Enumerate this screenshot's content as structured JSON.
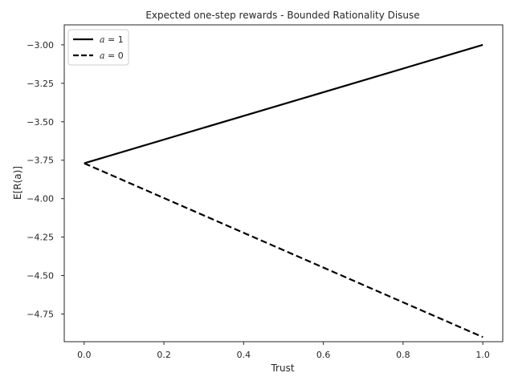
{
  "chart_data": {
    "type": "line",
    "title": "Expected one-step rewards - Bounded Rationality Disuse",
    "xlabel": "Trust",
    "ylabel": "E[R(a)]",
    "xlim": [
      -0.05,
      1.05
    ],
    "ylim": [
      -4.93,
      -2.87
    ],
    "xticks": [
      0.0,
      0.2,
      0.4,
      0.6,
      0.8,
      1.0
    ],
    "xtick_labels": [
      "0.0",
      "0.2",
      "0.4",
      "0.6",
      "0.8",
      "1.0"
    ],
    "yticks": [
      -3.0,
      -3.25,
      -3.5,
      -3.75,
      -4.0,
      -4.25,
      -4.5,
      -4.75
    ],
    "ytick_labels": [
      "−3.00",
      "−3.25",
      "−3.50",
      "−3.75",
      "−4.00",
      "−4.25",
      "−4.50",
      "−4.75"
    ],
    "grid": false,
    "legend_position": "upper-left",
    "series": [
      {
        "name": "a = 1",
        "name_var": "a",
        "name_rest": " = 1",
        "style": "solid",
        "color": "#000000",
        "x": [
          0.0,
          1.0
        ],
        "y": [
          -3.77,
          -3.0
        ]
      },
      {
        "name": "a = 0",
        "name_var": "a",
        "name_rest": " = 0",
        "style": "dashed",
        "color": "#000000",
        "x": [
          0.0,
          1.0
        ],
        "y": [
          -3.77,
          -4.9
        ]
      }
    ]
  }
}
